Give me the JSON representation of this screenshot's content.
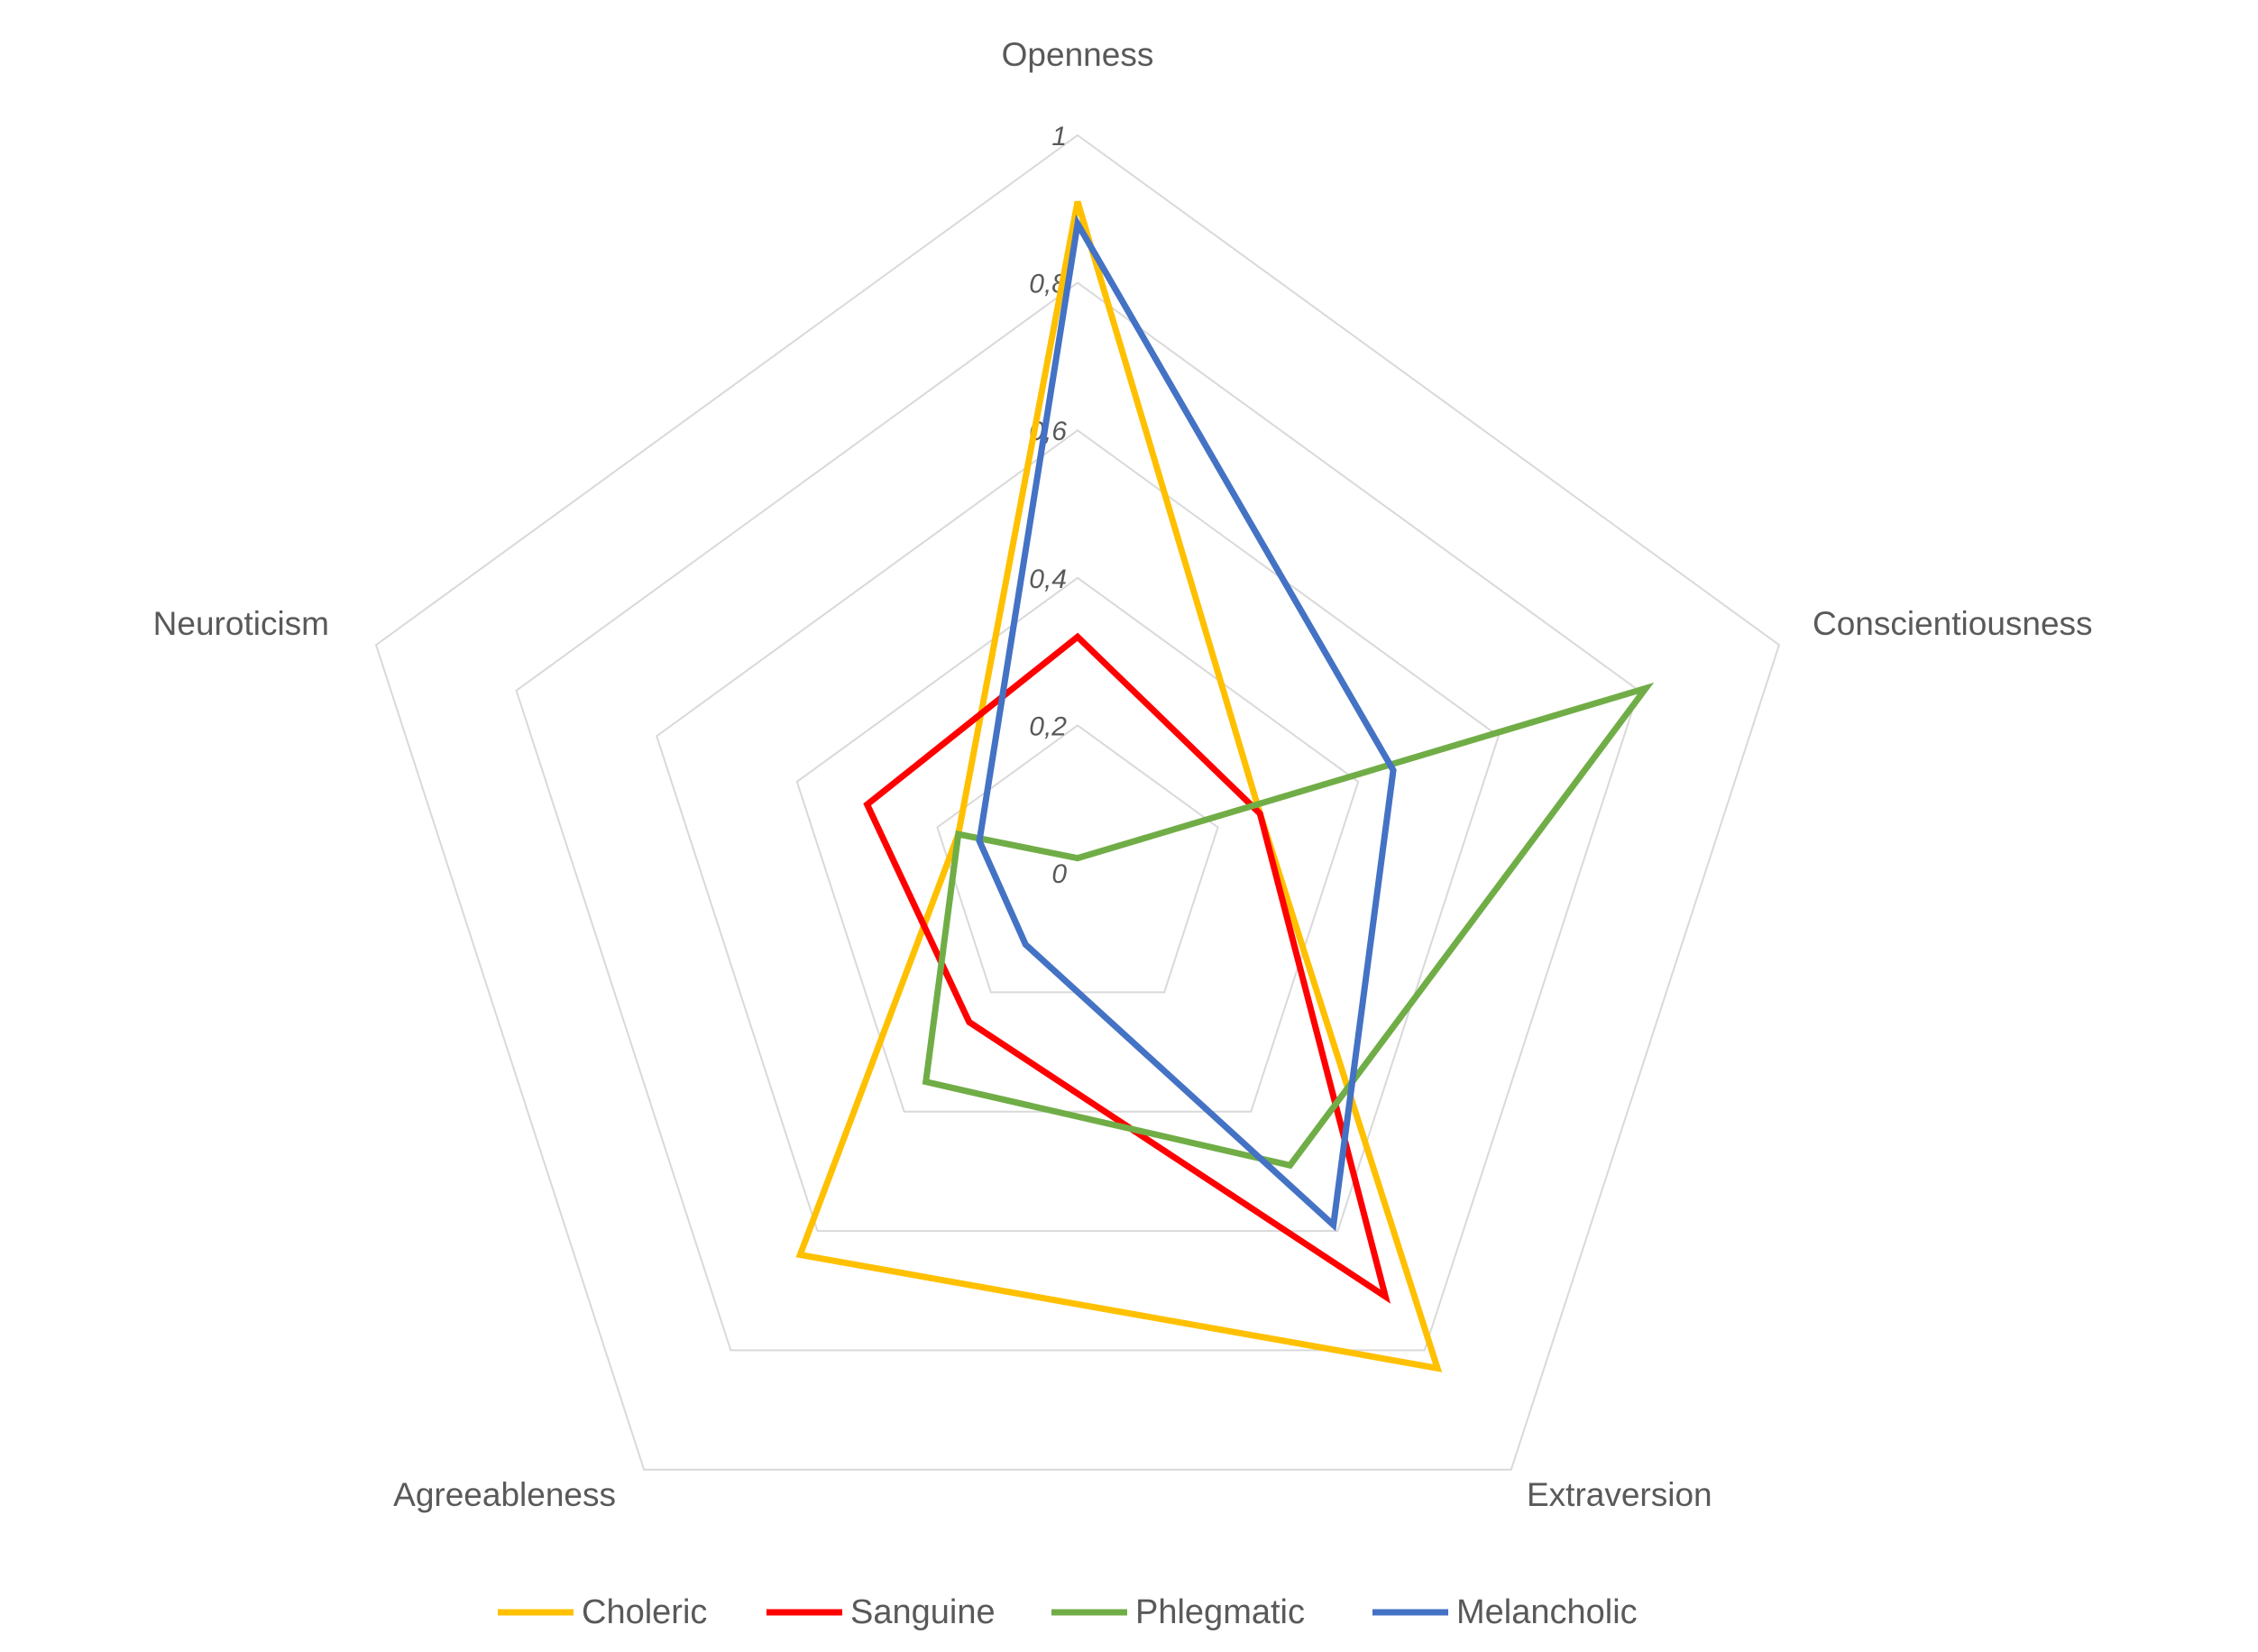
{
  "chart_data": {
    "type": "radar",
    "axes": [
      "Openness",
      "Conscientiousness",
      "Extraversion",
      "Agreeableness",
      "Neuroticism"
    ],
    "rlim": [
      0,
      1
    ],
    "ticks": [
      "0",
      "0,2",
      "0,4",
      "0,6",
      "0,8",
      "1"
    ],
    "grid": true,
    "legend": "bottom",
    "series": [
      {
        "name": "Choleric",
        "color": "#FFC000",
        "values": [
          0.91,
          0.26,
          0.83,
          0.64,
          0.17
        ]
      },
      {
        "name": "Sanguine",
        "color": "#FF0000",
        "values": [
          0.32,
          0.26,
          0.71,
          0.25,
          0.3
        ]
      },
      {
        "name": "Phlegmatic",
        "color": "#70AD47",
        "values": [
          0.02,
          0.81,
          0.49,
          0.35,
          0.17
        ]
      },
      {
        "name": "Melancholic",
        "color": "#4472C4",
        "values": [
          0.88,
          0.45,
          0.59,
          0.12,
          0.14
        ]
      }
    ]
  }
}
